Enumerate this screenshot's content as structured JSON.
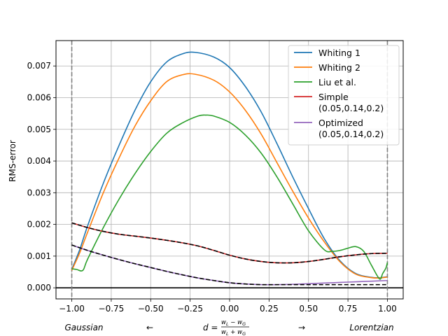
{
  "chart_data": {
    "type": "line",
    "title": "",
    "xlabel": "",
    "ylabel": "RMS-error",
    "xlim": [
      -1.1,
      1.1
    ],
    "ylim": [
      -0.00035,
      0.0078
    ],
    "xticks": [
      -1.0,
      -0.75,
      -0.5,
      -0.25,
      0.0,
      0.25,
      0.5,
      0.75,
      1.0
    ],
    "xtick_labels": [
      "−1.00",
      "−0.75",
      "−0.50",
      "−0.25",
      "0.00",
      "0.25",
      "0.50",
      "0.75",
      "1.00"
    ],
    "yticks": [
      0.0,
      0.001,
      0.002,
      0.003,
      0.004,
      0.005,
      0.006,
      0.007
    ],
    "ytick_labels": [
      "0.000",
      "0.001",
      "0.002",
      "0.003",
      "0.004",
      "0.005",
      "0.006",
      "0.007"
    ],
    "grid": true,
    "legend_position": "top-right",
    "bottom_annotations": {
      "left": "Gaussian",
      "left_arrow": "←",
      "center": "d = (w_L − w_G)/(w_L + w_G)",
      "right_arrow": "→",
      "right": "Lorentzian"
    },
    "reference_lines": {
      "horizontal_y": 0.0,
      "vertical_dashed_x": [
        -1.0,
        1.0
      ]
    },
    "series": [
      {
        "name": "Whiting 1",
        "color": "#1f77b4",
        "x": [
          -1.0,
          -0.95,
          -0.9,
          -0.8,
          -0.7,
          -0.6,
          -0.5,
          -0.4,
          -0.3,
          -0.22,
          -0.1,
          0.0,
          0.1,
          0.2,
          0.3,
          0.4,
          0.5,
          0.6,
          0.7,
          0.8,
          0.9,
          0.95,
          1.0
        ],
        "y": [
          0.00058,
          0.0012,
          0.00195,
          0.0033,
          0.0045,
          0.0056,
          0.0065,
          0.00712,
          0.00738,
          0.00743,
          0.00728,
          0.00695,
          0.00635,
          0.00555,
          0.00455,
          0.0035,
          0.0025,
          0.00155,
          0.00085,
          0.00045,
          0.00033,
          0.00032,
          0.00035
        ]
      },
      {
        "name": "Whiting 2",
        "color": "#ff7f0e",
        "x": [
          -1.0,
          -0.95,
          -0.9,
          -0.8,
          -0.7,
          -0.6,
          -0.5,
          -0.4,
          -0.3,
          -0.22,
          -0.1,
          0.0,
          0.1,
          0.2,
          0.3,
          0.4,
          0.5,
          0.6,
          0.7,
          0.8,
          0.9,
          0.95,
          1.0
        ],
        "y": [
          0.00055,
          0.0011,
          0.00175,
          0.003,
          0.0041,
          0.0051,
          0.0059,
          0.0065,
          0.00672,
          0.00674,
          0.00655,
          0.00618,
          0.0056,
          0.00485,
          0.00395,
          0.00305,
          0.0022,
          0.00145,
          0.00082,
          0.00043,
          0.00032,
          0.00031,
          0.00034
        ]
      },
      {
        "name": "Liu et al.",
        "color": "#2ca02c",
        "x": [
          -1.0,
          -0.97,
          -0.93,
          -0.9,
          -0.8,
          -0.7,
          -0.6,
          -0.5,
          -0.4,
          -0.3,
          -0.2,
          -0.15,
          -0.1,
          0.0,
          0.1,
          0.2,
          0.3,
          0.4,
          0.5,
          0.6,
          0.65,
          0.7,
          0.75,
          0.8,
          0.85,
          0.9,
          0.95,
          0.97,
          0.99,
          1.0
        ],
        "y": [
          0.0006,
          0.00058,
          0.00055,
          0.0009,
          0.0019,
          0.0028,
          0.0036,
          0.0043,
          0.00487,
          0.0052,
          0.00542,
          0.00545,
          0.00542,
          0.00522,
          0.00482,
          0.00425,
          0.0035,
          0.00265,
          0.0018,
          0.0012,
          0.00115,
          0.00118,
          0.00125,
          0.0013,
          0.00115,
          0.0007,
          0.00028,
          0.00045,
          0.00062,
          0.0008
        ]
      },
      {
        "name": "Simple\n(0.05,0.14,0.2)",
        "color": "#d62728",
        "x": [
          -1.0,
          -0.9,
          -0.8,
          -0.7,
          -0.6,
          -0.5,
          -0.4,
          -0.3,
          -0.2,
          -0.1,
          0.0,
          0.1,
          0.2,
          0.3,
          0.4,
          0.5,
          0.6,
          0.7,
          0.8,
          0.9,
          1.0
        ],
        "y": [
          0.00205,
          0.0019,
          0.00178,
          0.00169,
          0.00163,
          0.00157,
          0.0015,
          0.00142,
          0.00132,
          0.00118,
          0.00103,
          0.00091,
          0.00083,
          0.00079,
          0.00079,
          0.00083,
          0.0009,
          0.00098,
          0.00104,
          0.00108,
          0.00109
        ]
      },
      {
        "name": "Optimized\n(0.05,0.14,0.2)",
        "color": "#9467bd",
        "x": [
          -1.0,
          -0.9,
          -0.8,
          -0.7,
          -0.6,
          -0.5,
          -0.4,
          -0.3,
          -0.2,
          -0.1,
          0.0,
          0.1,
          0.2,
          0.3,
          0.4,
          0.5,
          0.6,
          0.7,
          0.8,
          0.9,
          1.0
        ],
        "y": [
          0.00135,
          0.00118,
          0.00103,
          0.00089,
          0.00076,
          0.00064,
          0.00052,
          0.00041,
          0.00031,
          0.00023,
          0.00016,
          0.00012,
          0.0001,
          0.0001,
          0.00011,
          0.00013,
          0.00015,
          0.00017,
          0.00019,
          0.00021,
          0.00023
        ]
      }
    ],
    "overlay_series": [
      {
        "color": "#000000",
        "style": "dashed",
        "x": [
          -1.0,
          -0.9,
          -0.8,
          -0.7,
          -0.6,
          -0.5,
          -0.4,
          -0.3,
          -0.2,
          -0.1,
          0.0,
          0.1,
          0.2,
          0.3,
          0.4,
          0.5,
          0.6,
          0.7,
          0.8,
          0.9,
          1.0
        ],
        "y": [
          0.00205,
          0.0019,
          0.00178,
          0.00169,
          0.00163,
          0.00157,
          0.0015,
          0.00142,
          0.00132,
          0.00118,
          0.00103,
          0.00091,
          0.00083,
          0.00079,
          0.00079,
          0.00083,
          0.0009,
          0.00098,
          0.00104,
          0.00108,
          0.00109
        ]
      },
      {
        "color": "#000000",
        "style": "dashed",
        "x": [
          -1.0,
          -0.9,
          -0.8,
          -0.7,
          -0.6,
          -0.5,
          -0.4,
          -0.3,
          -0.2,
          -0.1,
          0.0,
          0.1,
          0.2,
          0.3,
          0.4,
          0.5,
          0.6,
          0.7,
          0.8,
          0.9,
          1.0
        ],
        "y": [
          0.00135,
          0.00118,
          0.00103,
          0.00089,
          0.00076,
          0.00064,
          0.00052,
          0.00041,
          0.00031,
          0.00023,
          0.00016,
          0.00012,
          0.0001,
          0.0001,
          0.0001,
          0.0001,
          0.0001,
          0.0001,
          0.0001,
          0.0001,
          0.0001
        ]
      }
    ]
  }
}
